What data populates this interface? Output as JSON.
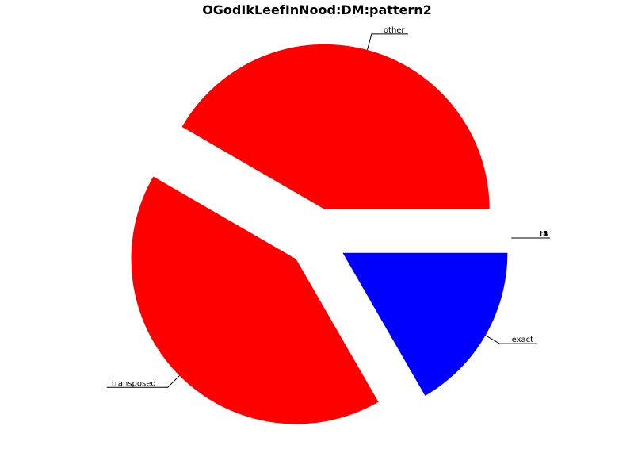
{
  "chart_data": {
    "type": "pie",
    "title": "OGodIkLeefInNood:DM:pattern2",
    "slices": [
      {
        "label": "other",
        "value": 150,
        "color": "#ff0000",
        "explode": true
      },
      {
        "label": "transposed",
        "value": 150,
        "color": "#ff0000",
        "explode": true
      },
      {
        "label": "exact",
        "value": 60,
        "color": "#0000ff",
        "explode": true
      },
      {
        "label": "t1",
        "value": 0.0001,
        "color": "#ff0000",
        "explode": true
      },
      {
        "label": "t2",
        "value": 0.0001,
        "color": "#ff0000",
        "explode": true
      },
      {
        "label": "t3",
        "value": 0.0001,
        "color": "#ff0000",
        "explode": true
      },
      {
        "label": "t4",
        "value": 0.0001,
        "color": "#ff0000",
        "explode": true
      },
      {
        "label": "t5",
        "value": 0.0001,
        "color": "#ff0000",
        "explode": true
      }
    ],
    "start_angle_deg": 0,
    "direction": "counterclockwise",
    "legend": "none"
  }
}
